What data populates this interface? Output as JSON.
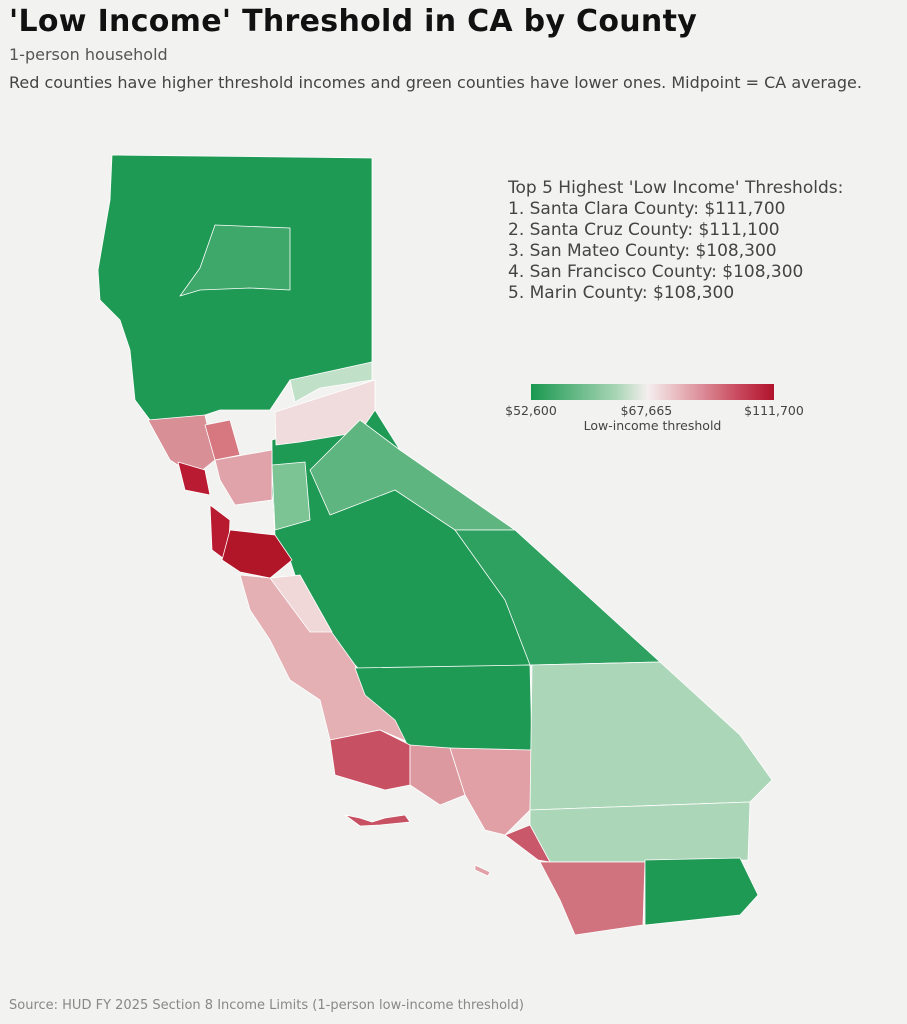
{
  "header": {
    "title": "'Low Income' Threshold in CA by County",
    "subtitle": "1-person household",
    "description": "Red counties have higher threshold incomes and green counties have lower ones. Midpoint = CA average."
  },
  "top5": {
    "heading": "Top 5 Highest 'Low Income' Thresholds:",
    "items": [
      "1. Santa Clara County: $111,700",
      "2. Santa Cruz County: $111,100",
      "3. San Mateo County: $108,300",
      "4. San Francisco County: $108,300",
      "5. Marin County: $108,300"
    ]
  },
  "legend": {
    "min_label": "$52,600",
    "mid_label": "$67,665",
    "max_label": "$111,700",
    "title": "Low-income threshold",
    "min": 52600,
    "mid": 67665,
    "max": 111700,
    "colors": {
      "low": "#1a9850",
      "mid": "#f4eeee",
      "high": "#b0132b"
    }
  },
  "regions": [
    {
      "name": "northern-counties",
      "color": "#1f9a55"
    },
    {
      "name": "lassen-region",
      "color": "#3ea86a"
    },
    {
      "name": "central-valley",
      "color": "#1f9a55"
    },
    {
      "name": "sierra-foothills-light",
      "color": "#c0e0c8"
    },
    {
      "name": "placer-el-dorado",
      "color": "#f0dcdc"
    },
    {
      "name": "sonoma-county",
      "color": "#d98f96"
    },
    {
      "name": "napa-county",
      "color": "#d77880"
    },
    {
      "name": "marin-county",
      "color": "#b91c32"
    },
    {
      "name": "east-bay",
      "color": "#dfa3a9"
    },
    {
      "name": "san-mateo-san-francisco",
      "color": "#b81a30"
    },
    {
      "name": "santa-clara-county",
      "color": "#b11528"
    },
    {
      "name": "mother-lode-strip",
      "color": "#5fb57f"
    },
    {
      "name": "san-joaquin-county",
      "color": "#7cc494"
    },
    {
      "name": "inyo-county",
      "color": "#2ea060"
    },
    {
      "name": "central-coast",
      "color": "#e4b0b4"
    },
    {
      "name": "san-benito-county",
      "color": "#f0d8d8"
    },
    {
      "name": "kern-county",
      "color": "#1f9a55"
    },
    {
      "name": "santa-barbara-county",
      "color": "#c75062"
    },
    {
      "name": "ventura-county",
      "color": "#dc9aa0"
    },
    {
      "name": "los-angeles-county",
      "color": "#e0a0a5"
    },
    {
      "name": "san-bernardino-county",
      "color": "#acd6b8"
    },
    {
      "name": "riverside-county",
      "color": "#acd6b8"
    },
    {
      "name": "orange-county",
      "color": "#c9596a"
    },
    {
      "name": "san-diego-county",
      "color": "#d1737e"
    },
    {
      "name": "imperial-county",
      "color": "#1f9a55"
    },
    {
      "name": "channel-islands-north",
      "color": "#c75062"
    },
    {
      "name": "channel-islands-south",
      "color": "#e0a0a5"
    }
  ],
  "source": "Source: HUD FY 2025 Section 8 Income Limits (1-person low-income threshold)"
}
